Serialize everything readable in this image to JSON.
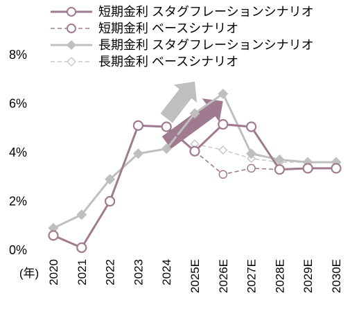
{
  "chart_data": {
    "type": "line",
    "title": "",
    "x_unit_label": "(年)",
    "categories": [
      "2020",
      "2021",
      "2022",
      "2023",
      "2024",
      "2025E",
      "2026E",
      "2027E",
      "2028E",
      "2029E",
      "2030E"
    ],
    "y_ticks": [
      "0%",
      "2%",
      "4%",
      "6%",
      "8%"
    ],
    "ylim": [
      0,
      8
    ],
    "y_unit": "%",
    "grid": false,
    "legend_position": "top-right",
    "series": [
      {
        "name": "短期金利 スタグフレーションシナリオ",
        "color": "#a07a8e",
        "dashed": false,
        "marker": "circle",
        "values": [
          0.6,
          0.1,
          2.0,
          5.1,
          5.05,
          4.05,
          5.15,
          5.05,
          3.3,
          3.35,
          3.35
        ]
      },
      {
        "name": "短期金利 ベースシナリオ",
        "color": "#a07a8e",
        "dashed": true,
        "marker": "circle",
        "values": [
          null,
          null,
          null,
          null,
          null,
          4.05,
          3.1,
          3.35,
          3.3,
          3.35,
          3.35
        ]
      },
      {
        "name": "長期金利 スタグフレーションシナリオ",
        "color": "#bfbfbf",
        "dashed": false,
        "marker": "diamond",
        "values": [
          0.9,
          1.45,
          2.9,
          3.95,
          4.15,
          5.6,
          6.4,
          3.95,
          3.7,
          3.6,
          3.6
        ]
      },
      {
        "name": "長期金利 ベースシナリオ",
        "color": "#c8c8c8",
        "dashed": true,
        "marker": "diamond",
        "values": [
          null,
          null,
          null,
          null,
          null,
          4.35,
          4.1,
          3.75,
          3.6,
          3.6,
          3.6
        ]
      }
    ],
    "arrows": [
      {
        "color": "#bfbfbf",
        "from": {
          "x": "2024",
          "y": 5.4
        },
        "to": {
          "x": "2025E",
          "y": 6.9
        }
      },
      {
        "color": "#a07a8e",
        "from": {
          "x": "2024",
          "y": 4.4
        },
        "to": {
          "x": "2026E",
          "y": 6.1
        }
      }
    ]
  }
}
